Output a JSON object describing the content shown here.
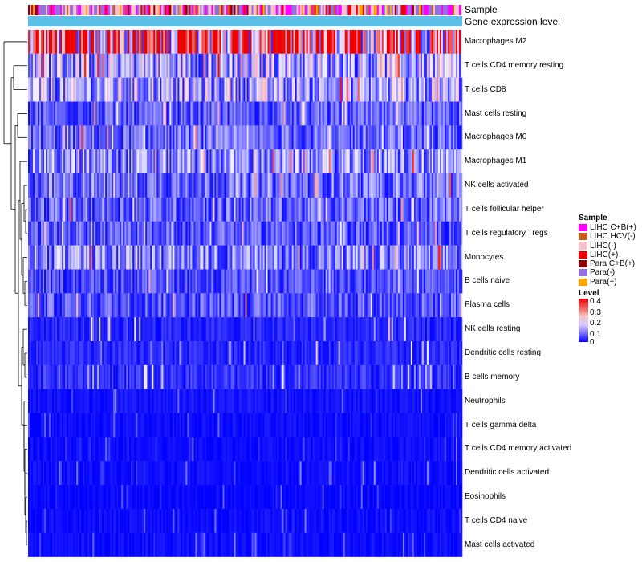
{
  "chart_data": {
    "type": "heatmap",
    "title": "",
    "annotation_tracks": [
      "Sample",
      "Gene expression level"
    ],
    "rows": [
      {
        "name": "Macrophages M2",
        "mean": 0.3
      },
      {
        "name": "T cells CD4 memory resting",
        "mean": 0.14
      },
      {
        "name": "T cells CD8",
        "mean": 0.13
      },
      {
        "name": "Mast cells resting",
        "mean": 0.07
      },
      {
        "name": "Macrophages M0",
        "mean": 0.08
      },
      {
        "name": "Macrophages M1",
        "mean": 0.11
      },
      {
        "name": "NK cells activated",
        "mean": 0.09
      },
      {
        "name": "T cells follicular helper",
        "mean": 0.08
      },
      {
        "name": "T cells regulatory  Tregs",
        "mean": 0.07
      },
      {
        "name": "Monocytes",
        "mean": 0.1
      },
      {
        "name": "B cells naive",
        "mean": 0.06
      },
      {
        "name": "Plasma cells",
        "mean": 0.07
      },
      {
        "name": "NK cells resting",
        "mean": 0.03
      },
      {
        "name": "Dendritic cells resting",
        "mean": 0.03
      },
      {
        "name": "B cells memory",
        "mean": 0.04
      },
      {
        "name": "Neutrophils",
        "mean": 0.015
      },
      {
        "name": "T cells gamma delta",
        "mean": 0.01
      },
      {
        "name": "T cells CD4 memory activated",
        "mean": 0.01
      },
      {
        "name": "Dendritic cells activated",
        "mean": 0.01
      },
      {
        "name": "Eosinophils",
        "mean": 0.005
      },
      {
        "name": "T cells CD4 naive",
        "mean": 0.01
      },
      {
        "name": "Mast cells activated",
        "mean": 0.01
      }
    ],
    "legend_sample": {
      "title": "Sample",
      "entries": [
        {
          "label": "LIHC C+B(+)",
          "color": "#ff00ff"
        },
        {
          "label": "LIHC HCV(-)",
          "color": "#c8601a"
        },
        {
          "label": "LIHC(-)",
          "color": "#ffc0cb"
        },
        {
          "label": "LIHC(+)",
          "color": "#ee0000"
        },
        {
          "label": "Para C+B(+)",
          "color": "#8b0000"
        },
        {
          "label": "Para(-)",
          "color": "#9370db"
        },
        {
          "label": "Para(+)",
          "color": "#ffa500"
        }
      ]
    },
    "legend_level": {
      "title": "Level",
      "ticks": [
        "0.4",
        "0.3",
        "0.2",
        "0.1",
        "0"
      ],
      "range": [
        0,
        0.4
      ],
      "colors": {
        "low": "#0000ff",
        "mid": "#f5f0ff",
        "high": "#ee0000"
      }
    },
    "gene_expression_color": "#5bc0e8",
    "columns": 270
  }
}
